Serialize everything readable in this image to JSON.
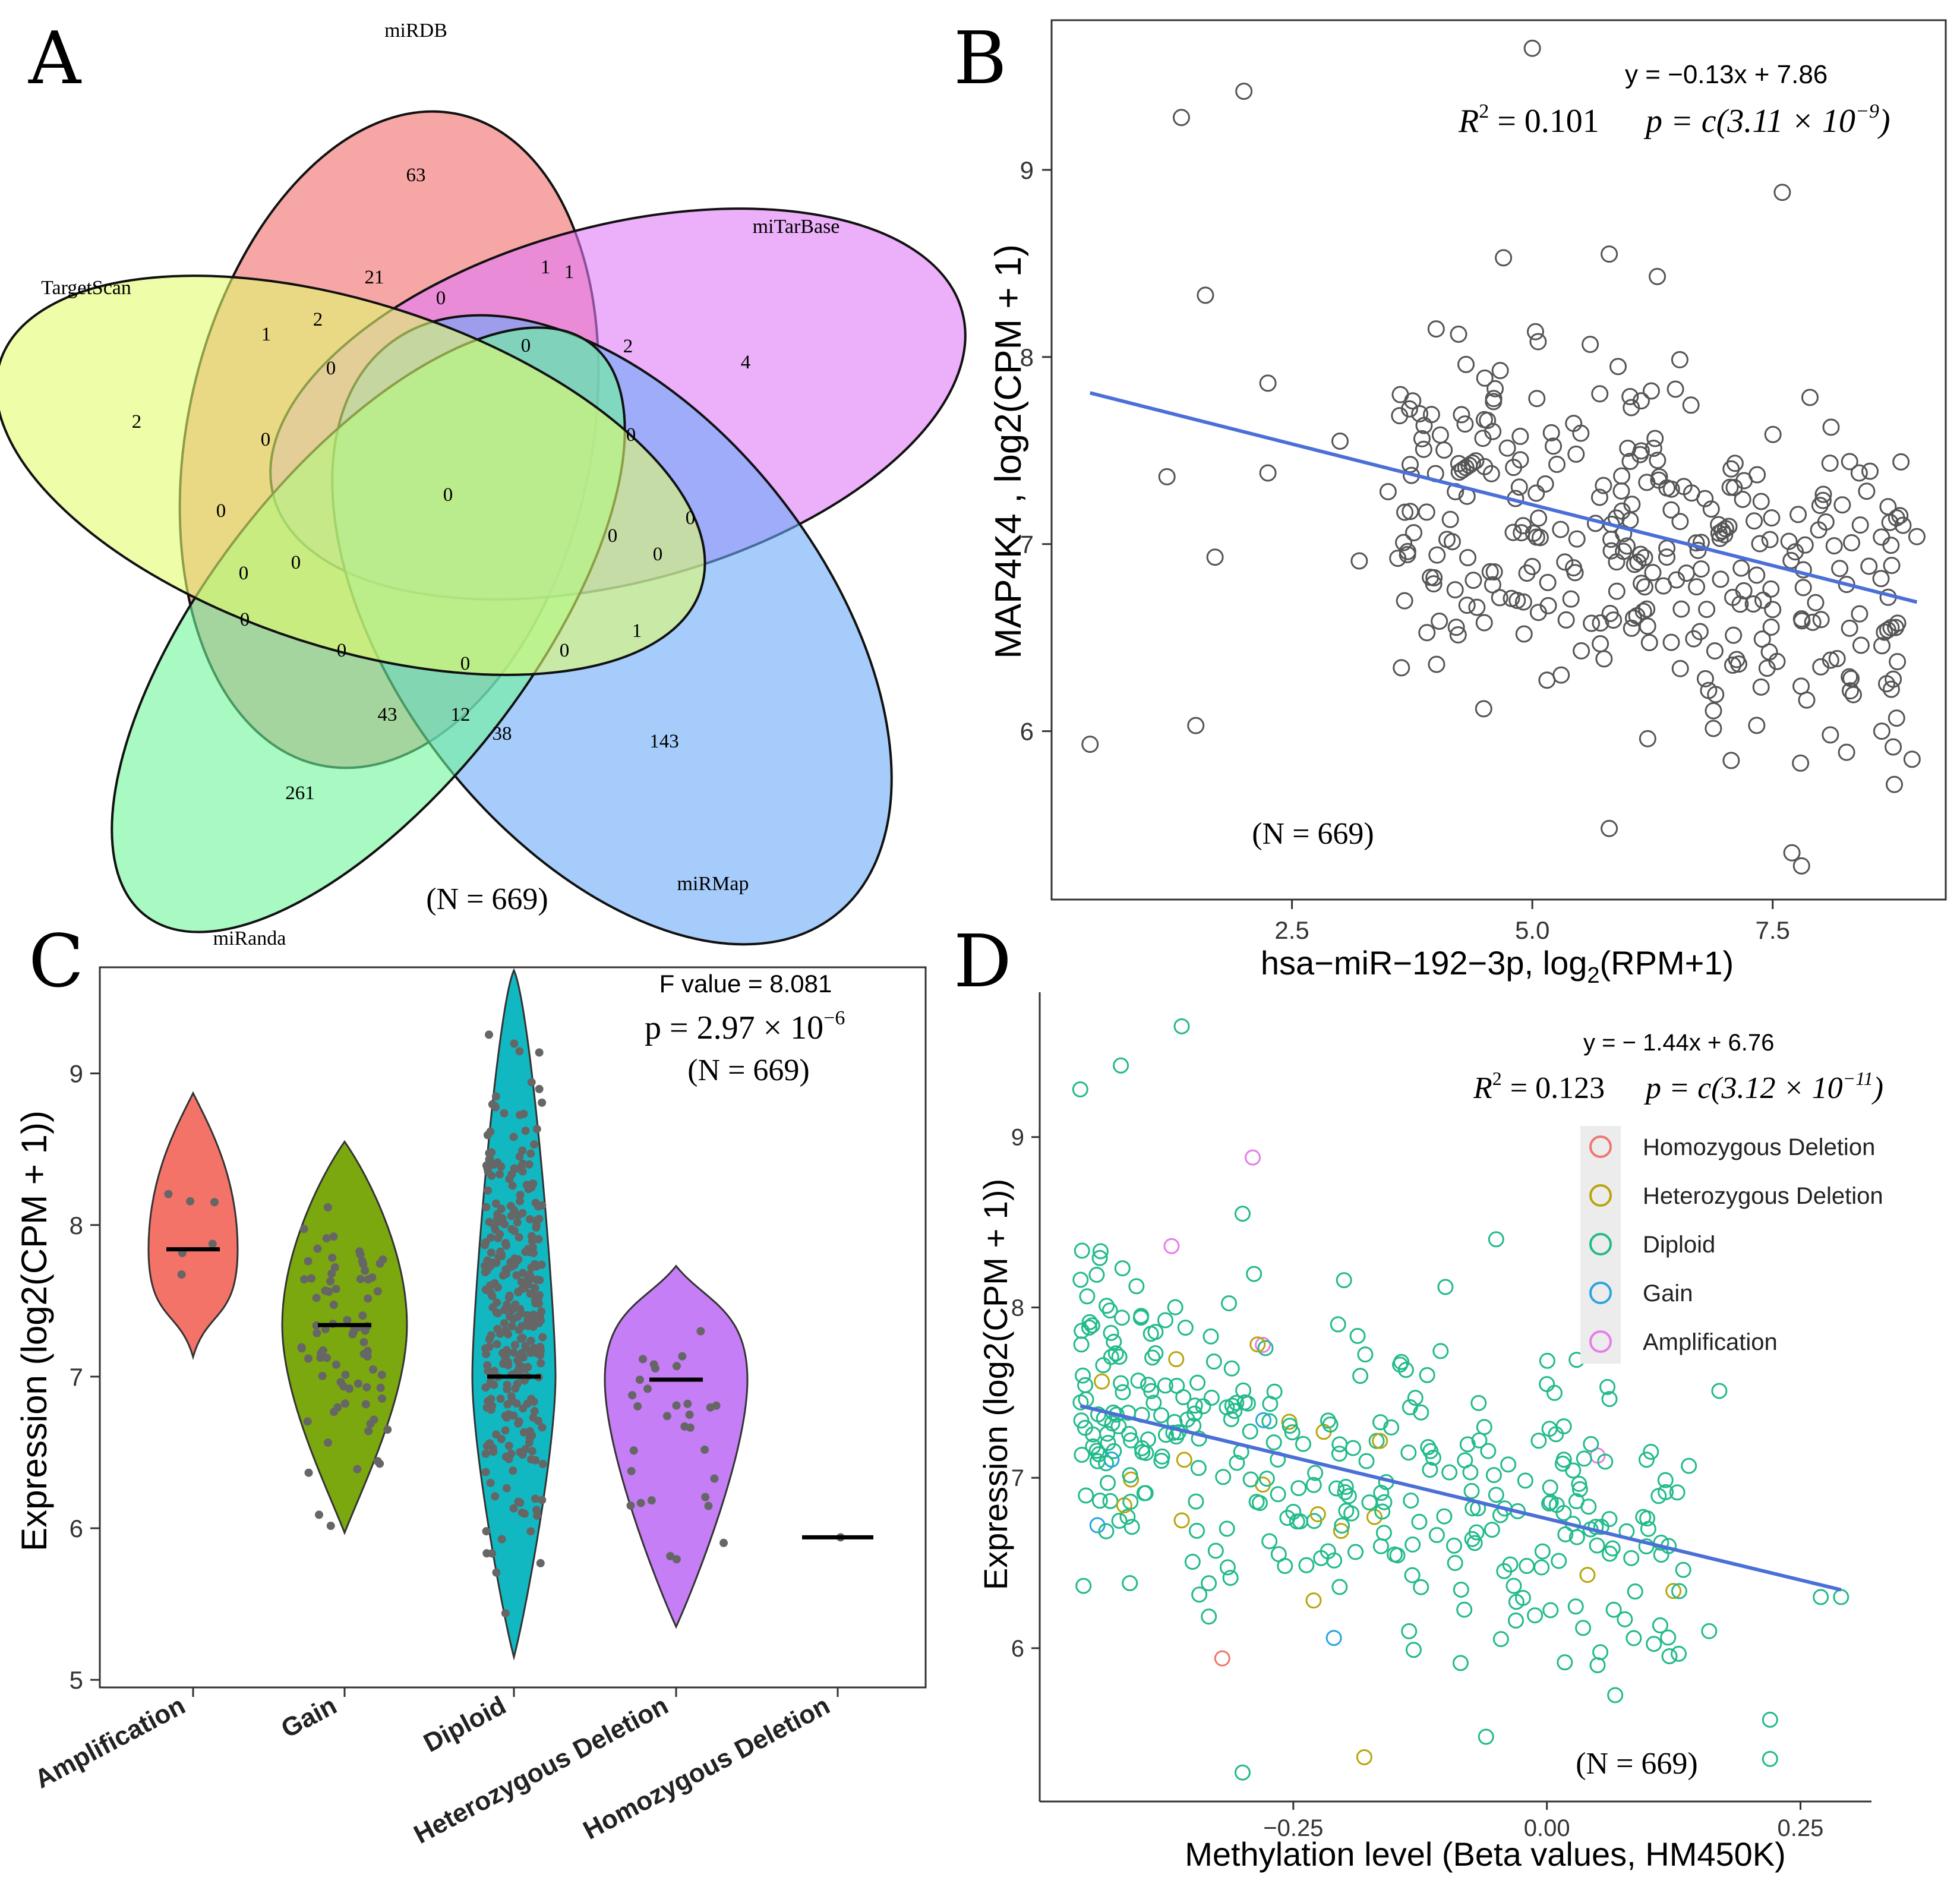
{
  "figure": {
    "panel_letters": [
      "A",
      "B",
      "C",
      "D"
    ]
  },
  "chart_data": [
    {
      "panel": "A",
      "type": "venn",
      "sets": [
        "miRDB",
        "miTarBase",
        "miRMap",
        "miRanda",
        "TargetScan"
      ],
      "region_counts": [
        "63",
        "4",
        "143",
        "261",
        "2",
        "21",
        "1",
        "2",
        "1",
        "1",
        "0",
        "2",
        "0",
        "0",
        "0",
        "0",
        "0",
        "0",
        "0",
        "0",
        "0",
        "0",
        "0",
        "1",
        "0",
        "43",
        "12",
        "38",
        "0",
        "0",
        "0"
      ],
      "n_label": "(N = 669)",
      "colors": [
        "#f26b6b",
        "#df79f7",
        "#6aaaf8",
        "#6ef59a",
        "#e1fb6e"
      ]
    },
    {
      "panel": "B",
      "type": "scatter",
      "xlabel": "hsa−miR−192−3p, log",
      "xlabel_sub": "2",
      "xlabel_tail": "(RPM+1)",
      "ylabel": "MAP4K4 , log2(CPM + 1)",
      "xlim": [
        0,
        9.3
      ],
      "ylim": [
        5.1,
        9.8
      ],
      "xticks": [
        "2.5",
        "5.0",
        "7.5"
      ],
      "xtick_values": [
        2.5,
        5.0,
        7.5
      ],
      "yticks": [
        "6",
        "7",
        "8",
        "9"
      ],
      "ytick_values": [
        6,
        7,
        8,
        9
      ],
      "equation": "y = −0.13x + 7.86",
      "r2_label": "R",
      "r2_value": "= 0.101",
      "p_text": "p = c(3.11 × 10",
      "p_exp": "−9",
      "p_close": ")",
      "n_label": "(N = 669)",
      "fit": {
        "slope": -0.13,
        "intercept": 7.86,
        "x_range": [
          0.4,
          9.0
        ]
      },
      "point_color": "#555555",
      "line_color": "#4a6fd6",
      "sample_points": [
        [
          0.4,
          5.93
        ],
        [
          1.35,
          9.28
        ],
        [
          2.0,
          9.42
        ],
        [
          5.0,
          9.65
        ],
        [
          7.6,
          8.88
        ],
        [
          1.6,
          8.33
        ],
        [
          2.25,
          7.86
        ],
        [
          1.2,
          7.36
        ],
        [
          1.5,
          6.03
        ],
        [
          1.7,
          6.93
        ],
        [
          2.25,
          7.38
        ],
        [
          3.2,
          6.91
        ],
        [
          4.7,
          8.53
        ],
        [
          5.8,
          8.55
        ],
        [
          6.3,
          8.43
        ],
        [
          4.0,
          8.15
        ],
        [
          5.7,
          7.25
        ],
        [
          6.4,
          7.3
        ],
        [
          7.0,
          7.05
        ],
        [
          7.8,
          6.6
        ],
        [
          8.1,
          5.98
        ],
        [
          8.95,
          5.85
        ],
        [
          7.8,
          5.28
        ],
        [
          7.7,
          5.35
        ],
        [
          5.8,
          5.48
        ],
        [
          6.2,
          5.96
        ],
        [
          8.4,
          7.38
        ],
        [
          8.7,
          7.2
        ],
        [
          9.0,
          7.04
        ],
        [
          3.0,
          7.55
        ],
        [
          3.5,
          7.28
        ],
        [
          4.2,
          7.28
        ],
        [
          4.5,
          6.58
        ],
        [
          5.3,
          6.3
        ],
        [
          6.8,
          6.28
        ],
        [
          7.2,
          6.75
        ],
        [
          7.5,
          6.65
        ],
        [
          8.3,
          6.55
        ]
      ]
    },
    {
      "panel": "C",
      "type": "violin",
      "title_f": "F value = 8.081",
      "p_text": "p = 2.97 × 10",
      "p_exp": "−6",
      "n_label": "(N = 669)",
      "ylabel": "Expression (log2(CPM + 1))",
      "ylim": [
        4.95,
        9.7
      ],
      "yticks": [
        "5",
        "6",
        "7",
        "8",
        "9"
      ],
      "ytick_values": [
        5,
        6,
        7,
        8,
        9
      ],
      "categories": [
        "Amplification",
        "Gain",
        "Diploid",
        "Heterozygous Deletion",
        "Homozygous Deletion"
      ],
      "medians": [
        7.84,
        7.34,
        7.0,
        6.98,
        5.94
      ],
      "ranges": [
        [
          7.13,
          8.87
        ],
        [
          5.97,
          8.55
        ],
        [
          5.15,
          9.68
        ],
        [
          5.35,
          7.73
        ],
        [
          5.94,
          5.94
        ]
      ],
      "colors": [
        "#f47368",
        "#7aa80e",
        "#12b8c1",
        "#c57ef5",
        "#000000"
      ]
    },
    {
      "panel": "D",
      "type": "scatter",
      "xlabel": "Methylation level (Beta values, HM450K)",
      "ylabel": "Expression (log2(CPM + 1))",
      "xlim": [
        -0.5,
        0.32
      ],
      "ylim": [
        5.1,
        9.85
      ],
      "xticks": [
        "−0.25",
        "0.00",
        "0.25"
      ],
      "xtick_values": [
        -0.25,
        0.0,
        0.25
      ],
      "yticks": [
        "6",
        "7",
        "8",
        "9"
      ],
      "ytick_values": [
        6,
        7,
        8,
        9
      ],
      "equation": "y = − 1.44x + 6.76",
      "r2_label": "R",
      "r2_value": "= 0.123",
      "p_text": "p = c(3.12 × 10",
      "p_exp": "−11",
      "p_close": ")",
      "n_label": "(N = 669)",
      "fit": {
        "slope": -1.44,
        "intercept": 6.76,
        "x_range": [
          -0.46,
          0.29
        ]
      },
      "legend": [
        "Homozygous Deletion",
        "Heterozygous Deletion",
        "Diploid",
        "Gain",
        "Amplification"
      ],
      "legend_colors": [
        "#f0766c",
        "#b8a50e",
        "#22ba8c",
        "#2ba4e0",
        "#e77de9"
      ],
      "line_color": "#4a6fd6",
      "sample_points": [
        [
          -0.46,
          9.28,
          2
        ],
        [
          -0.42,
          9.42,
          2
        ],
        [
          -0.36,
          9.65,
          2
        ],
        [
          -0.29,
          8.88,
          4
        ],
        [
          -0.37,
          8.36,
          4
        ],
        [
          -0.28,
          7.78,
          4
        ],
        [
          0.05,
          7.13,
          4
        ],
        [
          -0.21,
          6.06,
          3
        ],
        [
          -0.32,
          5.94,
          0
        ],
        [
          -0.18,
          5.36,
          1
        ],
        [
          -0.23,
          6.28,
          1
        ],
        [
          0.04,
          6.43,
          1
        ],
        [
          -0.41,
          6.99,
          1
        ],
        [
          -0.36,
          6.75,
          1
        ],
        [
          -0.28,
          6.96,
          1
        ],
        [
          -0.22,
          7.27,
          1
        ],
        [
          -0.17,
          6.77,
          1
        ],
        [
          0.22,
          5.58,
          2
        ],
        [
          0.22,
          5.35,
          2
        ],
        [
          -0.06,
          5.48,
          2
        ],
        [
          0.29,
          6.3,
          2
        ],
        [
          0.27,
          6.3,
          2
        ],
        [
          0.17,
          7.51,
          2
        ],
        [
          0.14,
          7.07,
          2
        ],
        [
          -0.05,
          8.4,
          2
        ],
        [
          -0.3,
          8.55,
          2
        ],
        [
          -0.44,
          8.33,
          2
        ],
        [
          -0.4,
          7.95,
          2
        ],
        [
          -0.2,
          8.16,
          2
        ],
        [
          -0.1,
          8.12,
          2
        ],
        [
          0.0,
          7.55,
          2
        ],
        [
          -0.05,
          6.9,
          2
        ],
        [
          0.1,
          6.7,
          2
        ],
        [
          -0.15,
          6.55,
          2
        ],
        [
          -0.25,
          6.8,
          2
        ],
        [
          -0.38,
          7.1,
          2
        ],
        [
          -0.3,
          5.27,
          2
        ],
        [
          0.05,
          5.9,
          2
        ],
        [
          0.16,
          6.1,
          2
        ],
        [
          0.12,
          6.6,
          2
        ]
      ]
    }
  ]
}
